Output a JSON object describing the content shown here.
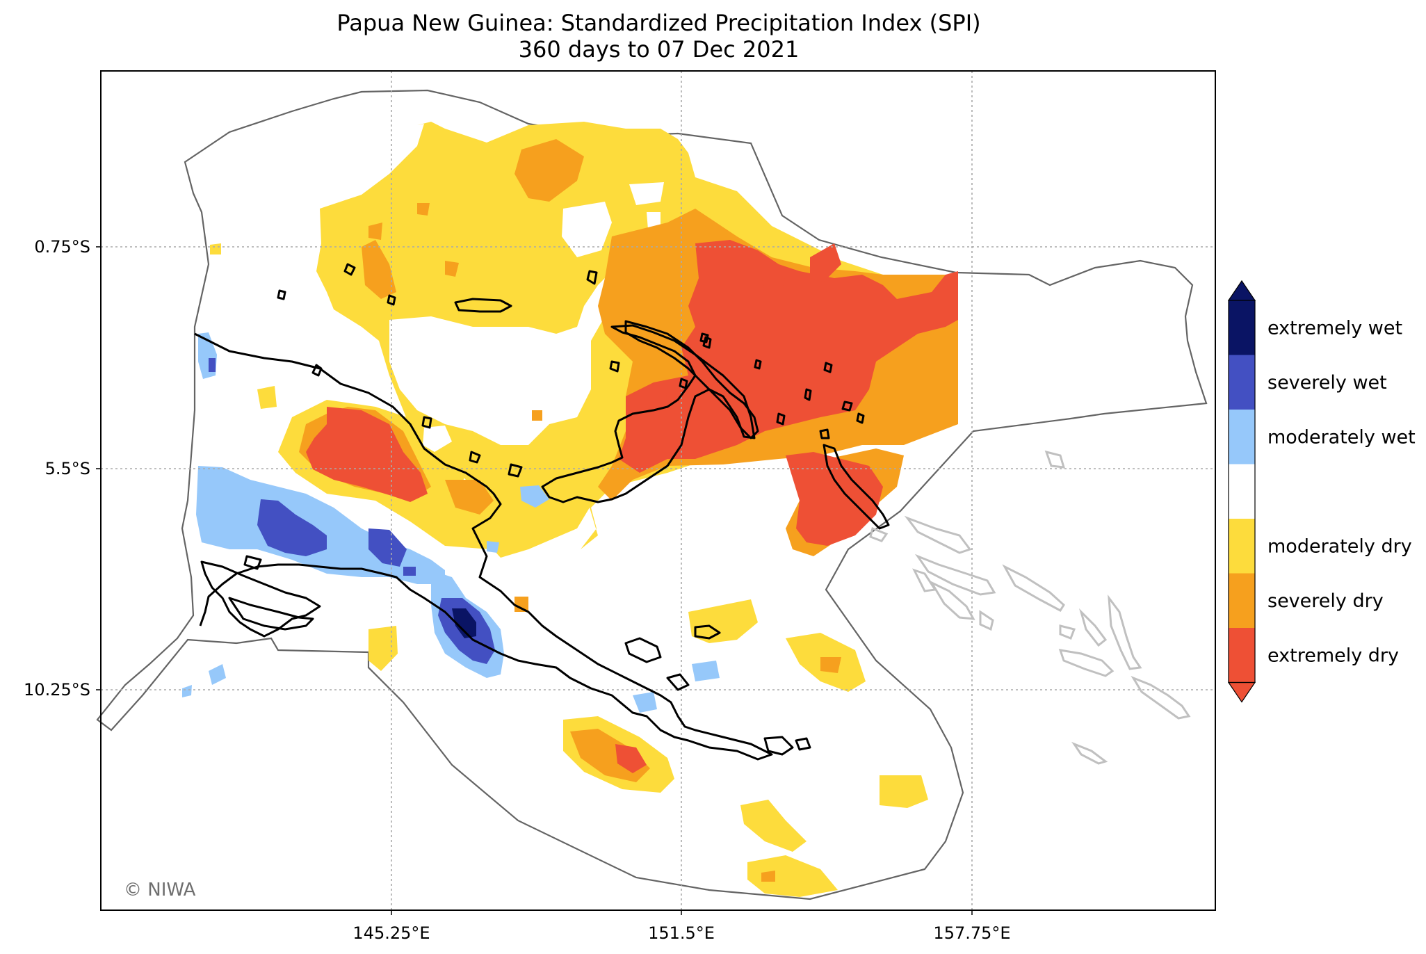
{
  "title": "Papua New Guinea: Standardized Precipitation Index (SPI)",
  "subtitle": "360 days to 07 Dec 2021",
  "axes": {
    "lat_ticks": [
      "0.75°S",
      "5.5°S",
      "10.25°S"
    ],
    "lon_ticks": [
      "145.25°E",
      "151.5°E",
      "157.75°E"
    ]
  },
  "credit": "© NIWA",
  "legend": [
    {
      "label": "extremely wet",
      "color": "#0a1464"
    },
    {
      "label": "severely wet",
      "color": "#4350c2"
    },
    {
      "label": "moderately wet",
      "color": "#96c8fa"
    },
    {
      "label": "",
      "color": "#ffffff"
    },
    {
      "label": "moderately dry",
      "color": "#fddc3c"
    },
    {
      "label": "severely dry",
      "color": "#f6a01e"
    },
    {
      "label": "extremely dry",
      "color": "#ee5035"
    }
  ],
  "colors": {
    "boundary": "#646464",
    "coastline": "#000000",
    "neighbor_coast": "#c0c0c0",
    "grid": "#aaaaaa"
  }
}
